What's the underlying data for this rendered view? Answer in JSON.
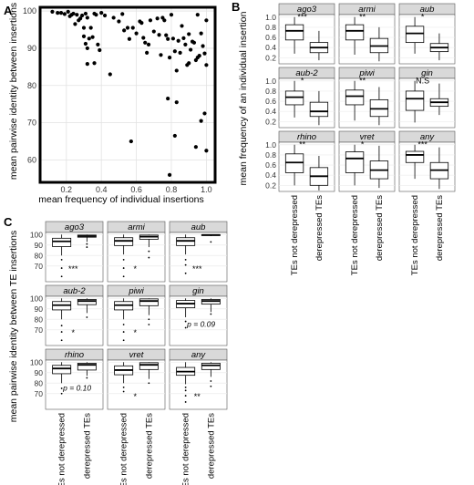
{
  "panels": {
    "A": {
      "letter": "A",
      "chart_data": {
        "type": "scatter",
        "xlabel": "mean frequency of individual insertions",
        "ylabel": "mean pairwise identity between insertions",
        "xlim": [
          0.05,
          1.05
        ],
        "ylim": [
          54,
          101
        ],
        "xticks": [
          0.2,
          0.4,
          0.6,
          0.8,
          1.0
        ],
        "xtick_labels": [
          "0.2",
          "0.4",
          "0.6",
          "0.8",
          "1.0"
        ],
        "yticks": [
          60,
          70,
          80,
          90,
          100
        ],
        "ytick_labels": [
          "60",
          "70",
          "80",
          "90",
          "100"
        ],
        "grid": true,
        "points": [
          [
            0.12,
            99.8
          ],
          [
            0.15,
            99.5
          ],
          [
            0.17,
            99.5
          ],
          [
            0.19,
            99.2
          ],
          [
            0.21,
            99.8
          ],
          [
            0.22,
            98.6
          ],
          [
            0.23,
            99.0
          ],
          [
            0.24,
            99.3
          ],
          [
            0.25,
            96.5
          ],
          [
            0.26,
            99.0
          ],
          [
            0.27,
            97.5
          ],
          [
            0.28,
            98.0
          ],
          [
            0.29,
            98.8
          ],
          [
            0.3,
            95.5
          ],
          [
            0.31,
            99.3
          ],
          [
            0.32,
            98.2
          ],
          [
            0.3,
            93.2
          ],
          [
            0.31,
            91.2
          ],
          [
            0.32,
            90.0
          ],
          [
            0.33,
            92.6
          ],
          [
            0.34,
            95.5
          ],
          [
            0.35,
            93.0
          ],
          [
            0.36,
            99.3
          ],
          [
            0.37,
            99.0
          ],
          [
            0.38,
            91.0
          ],
          [
            0.39,
            89.5
          ],
          [
            0.4,
            99.5
          ],
          [
            0.42,
            98.8
          ],
          [
            0.32,
            85.8
          ],
          [
            0.36,
            86.0
          ],
          [
            0.45,
            83.0
          ],
          [
            0.47,
            98.2
          ],
          [
            0.5,
            97.2
          ],
          [
            0.52,
            99.2
          ],
          [
            0.53,
            94.8
          ],
          [
            0.55,
            95.5
          ],
          [
            0.56,
            92.5
          ],
          [
            0.58,
            95.5
          ],
          [
            0.6,
            94.0
          ],
          [
            0.62,
            97.2
          ],
          [
            0.63,
            96.8
          ],
          [
            0.64,
            92.8
          ],
          [
            0.65,
            91.5
          ],
          [
            0.66,
            88.8
          ],
          [
            0.67,
            91.0
          ],
          [
            0.68,
            97.5
          ],
          [
            0.7,
            94.5
          ],
          [
            0.72,
            98.0
          ],
          [
            0.73,
            93.6
          ],
          [
            0.74,
            88.2
          ],
          [
            0.75,
            98.2
          ],
          [
            0.76,
            97.5
          ],
          [
            0.77,
            93.5
          ],
          [
            0.78,
            92.5
          ],
          [
            0.79,
            87.5
          ],
          [
            0.8,
            99.0
          ],
          [
            0.81,
            92.6
          ],
          [
            0.82,
            89.2
          ],
          [
            0.83,
            84.0
          ],
          [
            0.84,
            92.0
          ],
          [
            0.85,
            88.8
          ],
          [
            0.86,
            96.0
          ],
          [
            0.87,
            92.7
          ],
          [
            0.88,
            91.0
          ],
          [
            0.89,
            85.5
          ],
          [
            0.9,
            93.8
          ],
          [
            0.91,
            89.6
          ],
          [
            0.92,
            91.8
          ],
          [
            0.93,
            91.5
          ],
          [
            0.94,
            86.8
          ],
          [
            0.95,
            99.0
          ],
          [
            0.96,
            88.0
          ],
          [
            0.97,
            94.0
          ],
          [
            0.98,
            90.6
          ],
          [
            0.99,
            88.6
          ],
          [
            1.0,
            85.5
          ],
          [
            1.0,
            97.5
          ],
          [
            0.99,
            72.5
          ],
          [
            1.0,
            62.5
          ],
          [
            0.97,
            70.5
          ],
          [
            0.94,
            63.5
          ],
          [
            0.82,
            66.5
          ],
          [
            0.83,
            75.5
          ],
          [
            0.78,
            76.5
          ],
          [
            0.57,
            65.0
          ],
          [
            0.79,
            56.0
          ],
          [
            0.9,
            86.0
          ],
          [
            0.95,
            87.5
          ]
        ]
      }
    },
    "B": {
      "letter": "B",
      "chart_data": {
        "type": "boxplot",
        "ylabel": "mean frequency of an individual insertion",
        "ylim": [
          0.08,
          1.05
        ],
        "yticks": [
          0.2,
          0.4,
          0.6,
          0.8,
          1.0
        ],
        "ytick_labels": [
          "0.2",
          "0.4",
          "0.6",
          "0.8",
          "1.0"
        ],
        "categories": [
          "TEs not derepressed",
          "derepressed TEs"
        ],
        "facets": [
          {
            "name": "ago3",
            "sig": "***",
            "boxes": [
              [
                0.28,
                0.55,
                0.73,
                0.85,
                1.0
              ],
              [
                0.15,
                0.3,
                0.4,
                0.5,
                0.73
              ]
            ]
          },
          {
            "name": "armi",
            "sig": "**",
            "boxes": [
              [
                0.26,
                0.55,
                0.73,
                0.85,
                1.0
              ],
              [
                0.13,
                0.3,
                0.43,
                0.58,
                0.8
              ]
            ]
          },
          {
            "name": "aub",
            "sig": "*",
            "boxes": [
              [
                0.28,
                0.5,
                0.68,
                0.82,
                1.0
              ],
              [
                0.15,
                0.32,
                0.4,
                0.48,
                0.68
              ]
            ]
          },
          {
            "name": "aub-2",
            "sig": "*",
            "boxes": [
              [
                0.28,
                0.53,
                0.68,
                0.8,
                1.0
              ],
              [
                0.13,
                0.3,
                0.4,
                0.58,
                0.8
              ]
            ]
          },
          {
            "name": "piwi",
            "sig": "**",
            "boxes": [
              [
                0.22,
                0.53,
                0.7,
                0.82,
                1.0
              ],
              [
                0.13,
                0.3,
                0.45,
                0.63,
                0.88
              ]
            ]
          },
          {
            "name": "gin",
            "sig": "N.S",
            "boxes": [
              [
                0.18,
                0.42,
                0.65,
                0.8,
                1.0
              ],
              [
                0.33,
                0.5,
                0.58,
                0.65,
                0.95
              ]
            ]
          },
          {
            "name": "rhino",
            "sig": "**",
            "boxes": [
              [
                0.2,
                0.45,
                0.65,
                0.82,
                1.0
              ],
              [
                0.1,
                0.2,
                0.38,
                0.55,
                0.78
              ]
            ]
          },
          {
            "name": "vret",
            "sig": "*",
            "boxes": [
              [
                0.2,
                0.45,
                0.73,
                0.86,
                1.0
              ],
              [
                0.15,
                0.33,
                0.5,
                0.68,
                0.98
              ]
            ]
          },
          {
            "name": "any",
            "sig": "***",
            "boxes": [
              [
                0.33,
                0.65,
                0.8,
                0.87,
                1.0
              ],
              [
                0.13,
                0.33,
                0.5,
                0.65,
                0.95
              ]
            ]
          }
        ]
      }
    },
    "C": {
      "letter": "C",
      "chart_data": {
        "type": "boxplot",
        "ylabel": "mean pairwise identity between TE insertions",
        "ylim": [
          55,
          102
        ],
        "yticks": [
          70,
          80,
          90,
          100
        ],
        "ytick_labels": [
          "70",
          "80",
          "90",
          "100"
        ],
        "categories": [
          "TEs not derepressed",
          "derepressed TEs"
        ],
        "facets": [
          {
            "name": "ago3",
            "sig": "***",
            "boxes": [
              [
                80.0,
                88.5,
                93.5,
                96.5,
                100.0
              ],
              [
                93.0,
                97.5,
                98.5,
                99.5,
                100.0
              ]
            ],
            "outliers": [
              [
                76,
                68,
                60
              ],
              [
                91,
                88
              ]
            ]
          },
          {
            "name": "armi",
            "sig": "*",
            "boxes": [
              [
                81.0,
                89.5,
                94.0,
                97.0,
                100.0
              ],
              [
                88.0,
                95.5,
                98.0,
                99.5,
                100.0
              ]
            ],
            "outliers": [
              [
                76,
                68,
                60
              ],
              [
                84,
                78
              ]
            ]
          },
          {
            "name": "aub",
            "sig": "***",
            "boxes": [
              [
                81.0,
                89.5,
                94.0,
                97.0,
                100.0
              ],
              [
                98.5,
                99.3,
                99.6,
                99.9,
                100.0
              ]
            ],
            "outliers": [
              [
                76,
                71,
                63
              ],
              [
                93
              ]
            ]
          },
          {
            "name": "aub-2",
            "sig": "*",
            "boxes": [
              [
                80.0,
                89.0,
                93.5,
                97.0,
                100.0
              ],
              [
                86.0,
                94.0,
                97.5,
                99.0,
                100.0
              ]
            ],
            "outliers": [
              [
                74,
                68,
                60
              ],
              [
                82
              ]
            ]
          },
          {
            "name": "piwi",
            "sig": "*",
            "boxes": [
              [
                80.0,
                89.0,
                93.5,
                97.0,
                100.0
              ],
              [
                84.0,
                93.0,
                97.5,
                99.5,
                100.0
              ]
            ],
            "outliers": [
              [
                75,
                68,
                60
              ],
              [
                80,
                75
              ]
            ]
          },
          {
            "name": "gin",
            "sig": "p = 0.09",
            "boxes": [
              [
                82.0,
                91.0,
                95.0,
                98.0,
                100.0
              ],
              [
                87.0,
                94.5,
                97.5,
                99.0,
                100.0
              ]
            ],
            "outliers": [
              [
                78,
                72
              ],
              [
                85
              ]
            ]
          },
          {
            "name": "rhino",
            "sig": "p = 0.10",
            "boxes": [
              [
                80.0,
                89.0,
                94.0,
                97.0,
                100.0
              ],
              [
                87.0,
                92.5,
                97.5,
                99.0,
                100.0
              ]
            ],
            "outliers": [
              [
                75,
                70
              ],
              [
                85
              ]
            ]
          },
          {
            "name": "vret",
            "sig": "*",
            "boxes": [
              [
                80.0,
                88.0,
                92.5,
                96.5,
                100.0
              ],
              [
                84.0,
                93.0,
                97.5,
                99.5,
                100.0
              ]
            ],
            "outliers": [
              [
                76,
                72
              ],
              [
                80
              ]
            ]
          },
          {
            "name": "any",
            "sig": "**",
            "boxes": [
              [
                79.0,
                87.5,
                91.0,
                95.0,
                100.0
              ],
              [
                86.0,
                93.0,
                97.0,
                99.0,
                100.0
              ]
            ],
            "outliers": [
              [
                76,
                73,
                68,
                62
              ],
              [
                82,
                77
              ]
            ]
          }
        ]
      }
    }
  }
}
